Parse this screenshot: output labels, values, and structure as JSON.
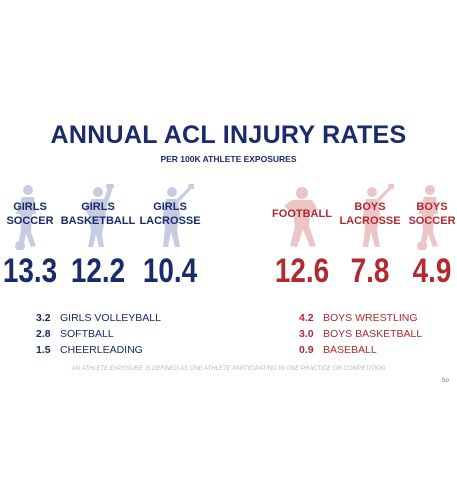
{
  "chart_data": {
    "type": "table",
    "title": "ANNUAL ACL INJURY RATES",
    "subtitle": "PER 100K ATHLETE EXPOSURES",
    "featured": [
      {
        "group": "girls",
        "label_lines": [
          "GIRLS",
          "SOCCER"
        ],
        "value": 13.3,
        "display": "13.3",
        "icon": "soccer-player-silhouette-icon"
      },
      {
        "group": "girls",
        "label_lines": [
          "GIRLS",
          "BASKETBALL"
        ],
        "value": 12.2,
        "display": "12.2",
        "icon": "basketball-player-silhouette-icon"
      },
      {
        "group": "girls",
        "label_lines": [
          "GIRLS",
          "LACROSSE"
        ],
        "value": 10.4,
        "display": "10.4",
        "icon": "lacrosse-player-silhouette-icon"
      },
      {
        "group": "boys",
        "label_lines": [
          "FOOTBALL"
        ],
        "value": 12.6,
        "display": "12.6",
        "icon": "football-player-silhouette-icon"
      },
      {
        "group": "boys",
        "label_lines": [
          "BOYS",
          "LACROSSE"
        ],
        "value": 7.8,
        "display": "7.8",
        "icon": "lacrosse-player-silhouette-icon"
      },
      {
        "group": "boys",
        "label_lines": [
          "BOYS",
          "SOCCER"
        ],
        "value": 4.9,
        "display": "4.9",
        "icon": "soccer-player-silhouette-icon"
      }
    ],
    "girls_list": [
      {
        "value": "3.2",
        "label": "GIRLS VOLLEYBALL"
      },
      {
        "value": "2.8",
        "label": "SOFTBALL"
      },
      {
        "value": "1.5",
        "label": "CHEERLEADING"
      }
    ],
    "boys_list": [
      {
        "value": "4.2",
        "label": "BOYS WRESTLING"
      },
      {
        "value": "3.0",
        "label": "BOYS BASKETBALL"
      },
      {
        "value": "0.9",
        "label": "BASEBALL"
      }
    ],
    "footnote": "AN ATHLETE EXPOSURE IS DEFINED AS ONE ATHLETE PARTICIPATING IN ONE PRACTICE OR COMPETITION",
    "corner_text": "So"
  },
  "colors": {
    "girls": "#1a2a6b",
    "boys": "#b02a30",
    "girls_silhouette": "#c7cce2",
    "boys_silhouette": "#ecc6c7"
  }
}
